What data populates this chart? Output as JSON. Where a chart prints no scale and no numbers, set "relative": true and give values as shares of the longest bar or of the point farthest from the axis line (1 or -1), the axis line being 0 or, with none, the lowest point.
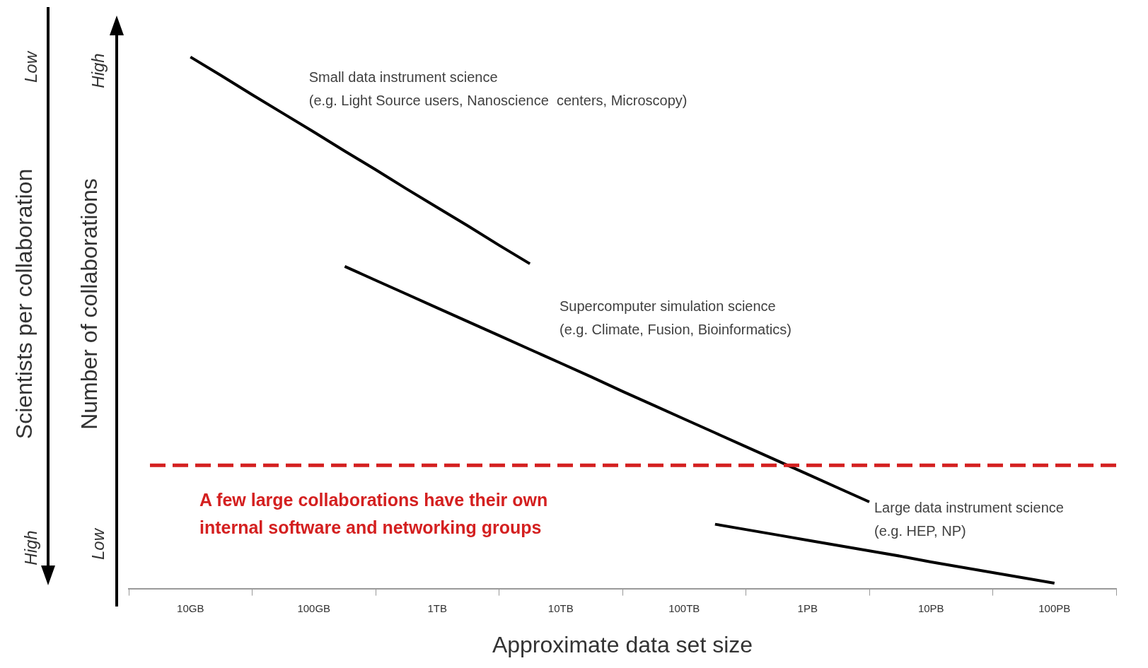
{
  "chart_data": {
    "type": "line",
    "relative": true,
    "xlabel": "Approximate data set size",
    "ylabel": "Number of collaborations",
    "y2label": "Scientists per collaboration",
    "categories": [
      null,
      null,
      "10GB",
      null,
      null,
      null,
      "100GB",
      null,
      null,
      null,
      "1TB",
      null,
      null,
      null,
      "10TB",
      null,
      null,
      null,
      "100TB",
      null,
      null,
      null,
      "1PB",
      null,
      null,
      null,
      "10PB",
      null,
      null,
      null,
      "100PB",
      null,
      null
    ],
    "series": [
      {
        "color": "#000000",
        "values": [
          null,
          null,
          1,
          0.965,
          0.929,
          0.894,
          0.859,
          0.823,
          0.788,
          0.752,
          0.717,
          0.682,
          0.646,
          0.611,
          null,
          null,
          null,
          null,
          null,
          null,
          null,
          null,
          null,
          null,
          null,
          null,
          null,
          null,
          null,
          null,
          null,
          null,
          null
        ]
      },
      {
        "color": "#000000",
        "values": [
          null,
          null,
          null,
          null,
          null,
          null,
          null,
          0.606,
          0.58,
          0.554,
          0.528,
          0.502,
          0.476,
          0.45,
          0.424,
          0.398,
          0.371,
          0.345,
          0.319,
          0.293,
          0.267,
          0.241,
          0.215,
          0.189,
          0.163,
          null,
          null,
          null,
          null,
          null,
          null,
          null,
          null
        ]
      },
      {
        "color": "#000000",
        "values": [
          null,
          null,
          null,
          null,
          null,
          null,
          null,
          null,
          null,
          null,
          null,
          null,
          null,
          null,
          null,
          null,
          null,
          null,
          null,
          0.121,
          0.111,
          0.101,
          0.091,
          0.081,
          0.071,
          0.061,
          0.05,
          0.04,
          0.03,
          0.02,
          0.01,
          null,
          null
        ]
      }
    ],
    "ref_lines": [
      {
        "axis": "y",
        "value": 0.232,
        "color": "#d42020",
        "line_style": "dashed",
        "label": "A few large collaborations have their own internal software and networking groups"
      }
    ],
    "annotations": [
      "Small data instrument science\n(e.g. Light Source users, Nanoscience  centers, Microscopy)",
      "Supercomputer simulation science\n(e.g. Climate, Fusion, Bioinformatics)",
      "Large data instrument science\n(e.g. HEP, NP)",
      "Low",
      "High",
      "High",
      "Low"
    ],
    "grid": false,
    "legend": false
  }
}
